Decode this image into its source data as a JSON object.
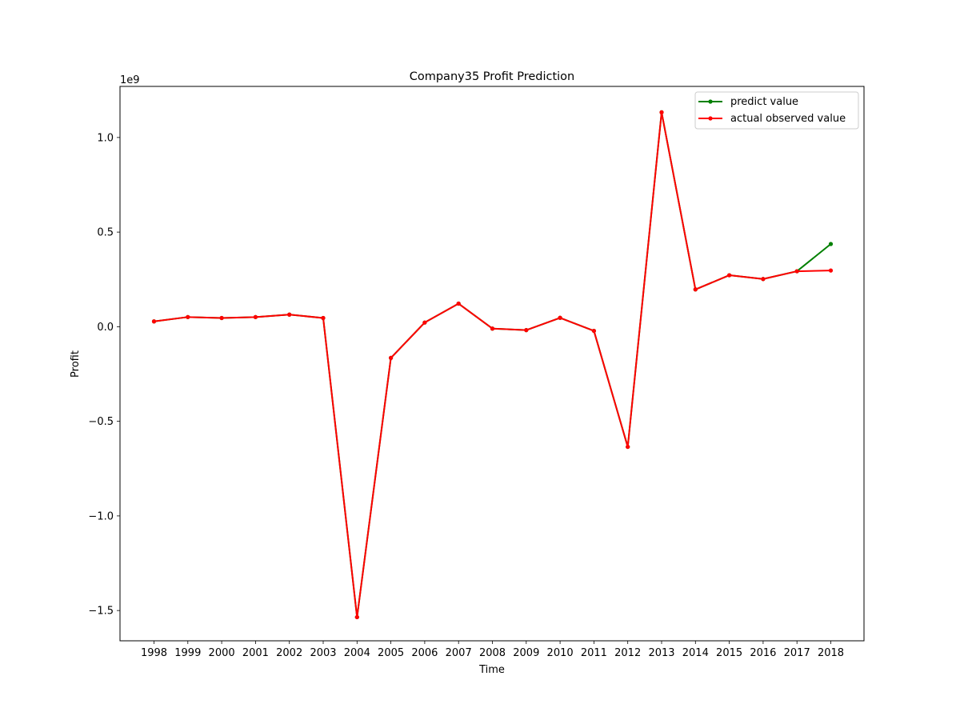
{
  "chart_data": {
    "type": "line",
    "title": "Company35 Profit Prediction",
    "xlabel": "Time",
    "ylabel": "Profit",
    "y_offset_label": "1e9",
    "x": [
      "1998",
      "1999",
      "2000",
      "2001",
      "2002",
      "2003",
      "2004",
      "2005",
      "2006",
      "2007",
      "2008",
      "2009",
      "2010",
      "2011",
      "2012",
      "2013",
      "2014",
      "2015",
      "2016",
      "2017",
      "2018"
    ],
    "ylim": [
      -1.66,
      1.27
    ],
    "y_ticks": [
      -1.5,
      -1.0,
      -0.5,
      0.0,
      0.5,
      1.0
    ],
    "y_tick_labels": [
      "−1.5",
      "−1.0",
      "−0.5",
      "0.0",
      "0.5",
      "1.0"
    ],
    "grid": false,
    "legend_position": "top-right",
    "series": [
      {
        "name": "predict value",
        "color": "#008000",
        "values": [
          0.028,
          0.051,
          0.046,
          0.051,
          0.064,
          0.046,
          -1.535,
          -0.165,
          0.022,
          0.122,
          -0.01,
          -0.018,
          0.047,
          -0.022,
          -0.635,
          1.133,
          0.197,
          0.272,
          0.252,
          0.293,
          0.437
        ]
      },
      {
        "name": "actual observed value",
        "color": "#ff0000",
        "values": [
          0.028,
          0.051,
          0.046,
          0.051,
          0.064,
          0.046,
          -1.535,
          -0.165,
          0.022,
          0.122,
          -0.01,
          -0.018,
          0.047,
          -0.022,
          -0.635,
          1.133,
          0.197,
          0.272,
          0.252,
          0.293,
          0.297
        ]
      }
    ]
  }
}
